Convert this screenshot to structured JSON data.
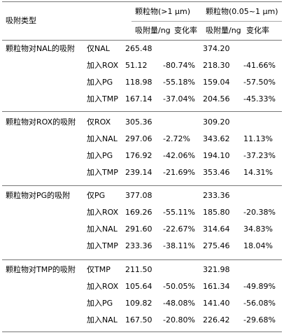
{
  "header": {
    "col_type": "吸附类型",
    "group1": "颗粒物(>1 μm)",
    "group2": "颗粒物(0.05~1 μm)",
    "sub_amount": "吸附量/ng",
    "sub_change": "变化率"
  },
  "groups": [
    {
      "label": "颗粒物对NAL的吸附",
      "rows": [
        {
          "cond": "仅NAL",
          "a1": "265.48",
          "c1": "",
          "a2": "374.20",
          "c2": ""
        },
        {
          "cond": "加入ROX",
          "a1": "51.12",
          "c1": "-80.74%",
          "a2": "218.30",
          "c2": "-41.66%"
        },
        {
          "cond": "加入PG",
          "a1": "118.98",
          "c1": "-55.18%",
          "a2": "159.04",
          "c2": "-57.50%"
        },
        {
          "cond": "加入TMP",
          "a1": "167.14",
          "c1": "-37.04%",
          "a2": "204.56",
          "c2": "-45.33%"
        }
      ]
    },
    {
      "label": "颗粒物对ROX的吸附",
      "rows": [
        {
          "cond": "仅ROX",
          "a1": "305.36",
          "c1": "",
          "a2": "309.20",
          "c2": ""
        },
        {
          "cond": "加入NAL",
          "a1": "297.06",
          "c1": "-2.72%",
          "a2": "343.62",
          "c2": "11.13%"
        },
        {
          "cond": "加入PG",
          "a1": "176.92",
          "c1": "-42.06%",
          "a2": "194.10",
          "c2": "-37.23%"
        },
        {
          "cond": "加入TMP",
          "a1": "239.14",
          "c1": "-21.69%",
          "a2": "353.46",
          "c2": "14.31%"
        }
      ]
    },
    {
      "label": "颗粒物对PG的吸附",
      "rows": [
        {
          "cond": "仅PG",
          "a1": "377.08",
          "c1": "",
          "a2": "233.36",
          "c2": ""
        },
        {
          "cond": "加入ROX",
          "a1": "169.26",
          "c1": "-55.11%",
          "a2": "185.80",
          "c2": "-20.38%"
        },
        {
          "cond": "加入NAL",
          "a1": "291.60",
          "c1": "-22.67%",
          "a2": "314.64",
          "c2": "34.83%"
        },
        {
          "cond": "加入TMP",
          "a1": "233.36",
          "c1": "-38.11%",
          "a2": "275.46",
          "c2": "18.04%"
        }
      ]
    },
    {
      "label": "颗粒物对TMP的吸附",
      "rows": [
        {
          "cond": "仅TMP",
          "a1": "211.50",
          "c1": "",
          "a2": "321.98",
          "c2": ""
        },
        {
          "cond": "加入ROX",
          "a1": "105.64",
          "c1": "-50.05%",
          "a2": "161.34",
          "c2": "-49.89%"
        },
        {
          "cond": "加入PG",
          "a1": "109.82",
          "c1": "-48.08%",
          "a2": "141.40",
          "c2": "-56.08%"
        },
        {
          "cond": "加入NAL",
          "a1": "167.50",
          "c1": "-20.80%",
          "a2": "226.42",
          "c2": "-29.68%"
        }
      ]
    }
  ]
}
